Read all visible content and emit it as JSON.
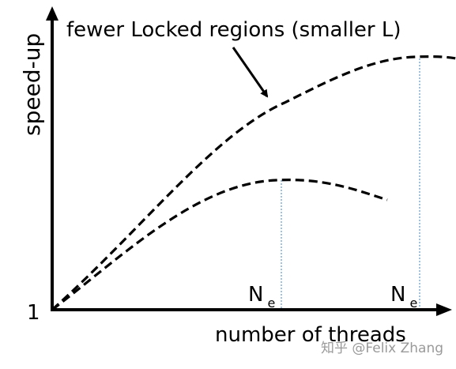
{
  "figure": {
    "annotation": "fewer Locked regions (smaller L)",
    "y_axis_label": "speed-up",
    "x_axis_label": "number of threads",
    "y_origin_label": "1",
    "peak_label_1": {
      "main": "N",
      "sub": "e"
    },
    "peak_label_2": {
      "main": "N",
      "sub": "e"
    },
    "watermark": "知乎 @Felix Zhang",
    "colors": {
      "curves": "#000000",
      "axes": "#000000",
      "guides": "#5b9bd5",
      "watermark": "#9a9a9a"
    }
  }
}
